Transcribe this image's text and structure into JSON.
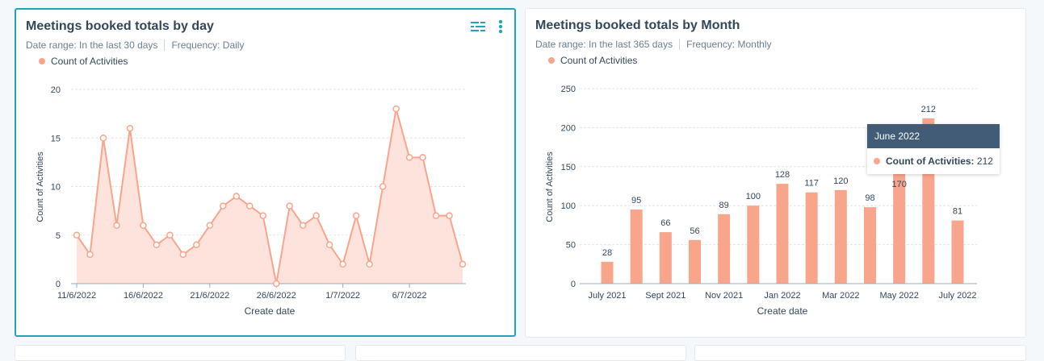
{
  "colors": {
    "accent": "#1fa5b5",
    "series": "#f8a58c",
    "tooltip_header": "#425b76"
  },
  "left_card": {
    "title": "Meetings booked totals by day",
    "date_range": "Date range: In the last 30 days",
    "frequency": "Frequency: Daily",
    "legend": "Count of Activities",
    "icons": [
      "filter-sliders-icon",
      "more-vertical-icon"
    ]
  },
  "right_card": {
    "title": "Meetings booked totals by Month",
    "date_range": "Date range: In the last 365 days",
    "frequency": "Frequency: Monthly",
    "legend": "Count of Activities",
    "tooltip": {
      "title": "June 2022",
      "label": "Count of Activities:",
      "value": "212"
    }
  },
  "chart_data": [
    {
      "type": "area",
      "xlabel": "Create date",
      "ylabel": "Count of Activities",
      "ylim": [
        0,
        20
      ],
      "yticks": [
        "0",
        "5",
        "10",
        "15",
        "20"
      ],
      "xtick_labels": [
        "11/6/2022",
        "16/6/2022",
        "21/6/2022",
        "26/6/2022",
        "1/7/2022",
        "6/7/2022"
      ],
      "x": [
        "11/6/2022",
        "12/6/2022",
        "13/6/2022",
        "14/6/2022",
        "15/6/2022",
        "16/6/2022",
        "17/6/2022",
        "18/6/2022",
        "19/6/2022",
        "20/6/2022",
        "21/6/2022",
        "22/6/2022",
        "23/6/2022",
        "24/6/2022",
        "25/6/2022",
        "26/6/2022",
        "27/6/2022",
        "28/6/2022",
        "29/6/2022",
        "30/6/2022",
        "1/7/2022",
        "2/7/2022",
        "3/7/2022",
        "4/7/2022",
        "5/7/2022",
        "6/7/2022",
        "7/7/2022",
        "8/7/2022",
        "9/7/2022",
        "10/7/2022"
      ],
      "values": [
        5,
        3,
        15,
        6,
        16,
        6,
        4,
        5,
        3,
        4,
        6,
        8,
        9,
        8,
        7,
        0,
        8,
        6,
        7,
        4,
        2,
        7,
        2,
        10,
        18,
        13,
        13,
        7,
        7,
        2
      ],
      "grid": true
    },
    {
      "type": "bar",
      "xlabel": "Create date",
      "ylabel": "Count of Activities",
      "ylim": [
        0,
        250
      ],
      "yticks": [
        "0",
        "50",
        "100",
        "150",
        "200",
        "250"
      ],
      "categories": [
        "July 2021",
        "Aug 2021",
        "Sept 2021",
        "Oct 2021",
        "Nov 2021",
        "Dec 2021",
        "Jan 2022",
        "Feb 2022",
        "Mar 2022",
        "Apr 2022",
        "May 2022",
        "June 2022",
        "July 2022"
      ],
      "xtick_labels": [
        "July 2021",
        "Sept 2021",
        "Nov 2021",
        "Jan 2022",
        "Mar 2022",
        "May 2022",
        "July 2022"
      ],
      "values": [
        28,
        95,
        66,
        56,
        89,
        100,
        128,
        117,
        120,
        98,
        170,
        212,
        81
      ],
      "labels": [
        "28",
        "95",
        "66",
        "56",
        "89",
        "100",
        "128",
        "117",
        "120",
        "98",
        "170",
        "212",
        "81"
      ],
      "grid": true
    }
  ]
}
